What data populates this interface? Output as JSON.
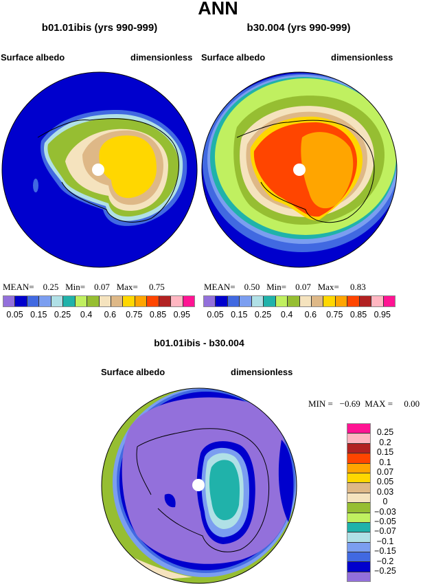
{
  "title": "ANN",
  "panels": [
    {
      "title": "b01.01ibis (yrs 990-999)",
      "left_label": "Surface albedo",
      "right_label": "dimensionless",
      "stats": {
        "mean_label": "MEAN=",
        "mean": "0.25",
        "min_label": "Min=",
        "min": "0.07",
        "max_label": "Max=",
        "max": "0.75"
      }
    },
    {
      "title": "b30.004 (yrs 990-999)",
      "left_label": "Surface albedo",
      "right_label": "dimensionless",
      "stats": {
        "mean_label": "MEAN=",
        "mean": "0.50",
        "min_label": "Min=",
        "min": "0.07",
        "max_label": "Max=",
        "max": "0.83"
      }
    }
  ],
  "colorbar_top": {
    "colors": [
      "#9370DB",
      "#0000CD",
      "#4169E1",
      "#7B9EF0",
      "#B0E0E6",
      "#20B2AA",
      "#C0F060",
      "#96BE32",
      "#F5E3BE",
      "#DEB887",
      "#FFD700",
      "#FFA500",
      "#FF4500",
      "#B22222",
      "#FFB6C1",
      "#FF1493"
    ],
    "labels": [
      "0.05",
      "0.15",
      "0.25",
      "0.4",
      "0.6",
      "0.75",
      "0.85",
      "0.95"
    ]
  },
  "diff": {
    "title": "b01.01ibis - b30.004",
    "left_label": "Surface albedo",
    "right_label": "dimensionless",
    "min_label": "MIN =",
    "min": "−0.69",
    "max_label": "MAX =",
    "max": "0.00",
    "colorbar": {
      "colors_top_to_bottom": [
        "#FF1493",
        "#FFB6C1",
        "#B22222",
        "#FF4500",
        "#FFA500",
        "#FFD700",
        "#DEB887",
        "#F5E3BE",
        "#96BE32",
        "#C0F060",
        "#20B2AA",
        "#B0E0E6",
        "#7B9EF0",
        "#4169E1",
        "#0000CD",
        "#9370DB"
      ],
      "labels": [
        "0.25",
        "0.2",
        "0.15",
        "0.1",
        "0.07",
        "0.05",
        "0.03",
        "0",
        "−0.03",
        "−0.05",
        "−0.07",
        "−0.1",
        "−0.15",
        "−0.2",
        "−0.25"
      ]
    }
  }
}
